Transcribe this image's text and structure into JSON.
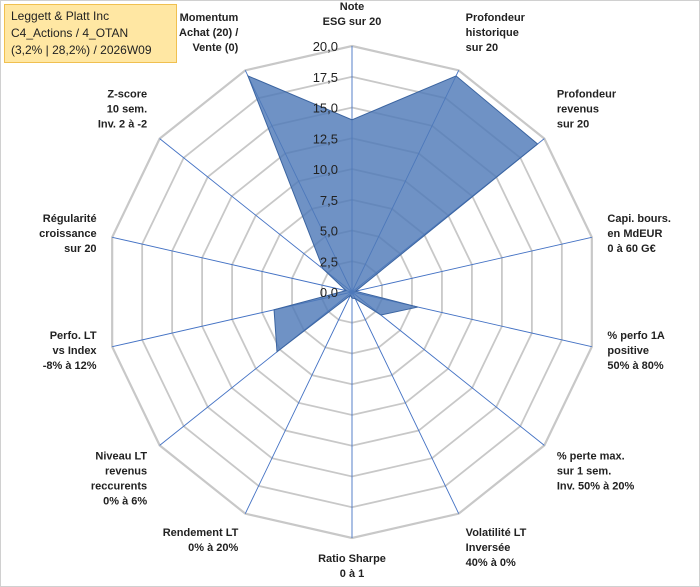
{
  "chart_data": {
    "type": "radar",
    "title_lines": [
      "Leggett & Platt Inc",
      "C4_Actions / 4_OTAN",
      "(3,2% | 28,2%) / 2026W09"
    ],
    "r_range": [
      0,
      20
    ],
    "ticks": [
      "0,0",
      "2,5",
      "5,0",
      "7,5",
      "10,0",
      "12,5",
      "15,0",
      "17,5",
      "20,0"
    ],
    "categories": [
      [
        "Note",
        "ESG sur 20"
      ],
      [
        "Profondeur",
        "historique",
        "sur 20"
      ],
      [
        "Profondeur",
        "revenus",
        "sur 20"
      ],
      [
        "Capi. bours.",
        "en MdEUR",
        "0 à 60 G€"
      ],
      [
        "% perfo 1A",
        "positive",
        "50% à 80%"
      ],
      [
        "% perte max.",
        "sur 1 sem.",
        "Inv. 50% à 20%"
      ],
      [
        "Volatilité LT",
        "Inversée",
        "40% à 0%"
      ],
      [
        "Ratio Sharpe",
        "0 à 1"
      ],
      [
        "Rendement LT",
        "0% à 20%"
      ],
      [
        "Niveau LT",
        "revenus",
        "reccurents",
        "0% à 6%"
      ],
      [
        "Perfo. LT",
        "vs Index",
        "-8% à 12%"
      ],
      [
        "Régularité",
        "croissance",
        "sur 20"
      ],
      [
        "Z-score",
        "10 sem.",
        "Inv. 2 à -2"
      ],
      [
        "Momentum",
        "Achat (20) /",
        "Vente (0)"
      ]
    ],
    "series": [
      {
        "name": "Leggett & Platt Inc",
        "color": "#4f7ab8",
        "values": [
          14.0,
          19.5,
          19.3,
          0.3,
          5.5,
          3.0,
          0.6,
          0.5,
          0.3,
          7.8,
          6.5,
          0.5,
          3.0,
          19.5
        ]
      }
    ],
    "grid": true
  }
}
